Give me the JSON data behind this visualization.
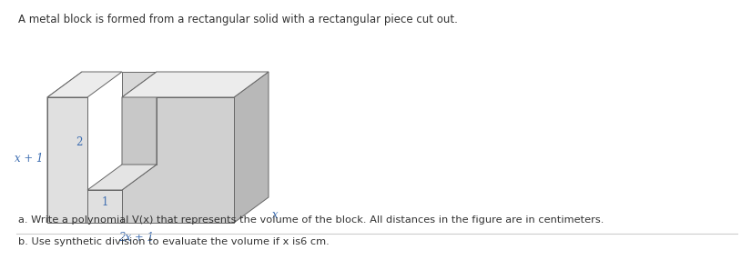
{
  "title_text": "A metal block is formed from a rectangular solid with a rectangular piece cut out.",
  "label_x_plus_1": "x + 1",
  "label_2x_plus_1": "2x + 1",
  "label_x": "x",
  "label_2": "2",
  "label_1": "1",
  "question_a": "a. Write a polynomial V(x) that represents the volume of the block. All distances in the figure are in centimeters.",
  "question_b": "b. Use synthetic division to evaluate the volume if x is6 cm.",
  "bg_color": "#ffffff",
  "fc_front_left": "#e0e0e0",
  "fc_front_right": "#d0d0d0",
  "fc_top": "#ececec",
  "fc_right": "#b8b8b8",
  "fc_inner_back": "#d8d8d8",
  "fc_inner_right": "#c8c8c8",
  "fc_inner_floor": "#e4e4e4",
  "ec": "#666666",
  "line_sep_color": "#cccccc",
  "text_color": "#333333",
  "label_color": "#3a6bb0",
  "lw": 0.7
}
